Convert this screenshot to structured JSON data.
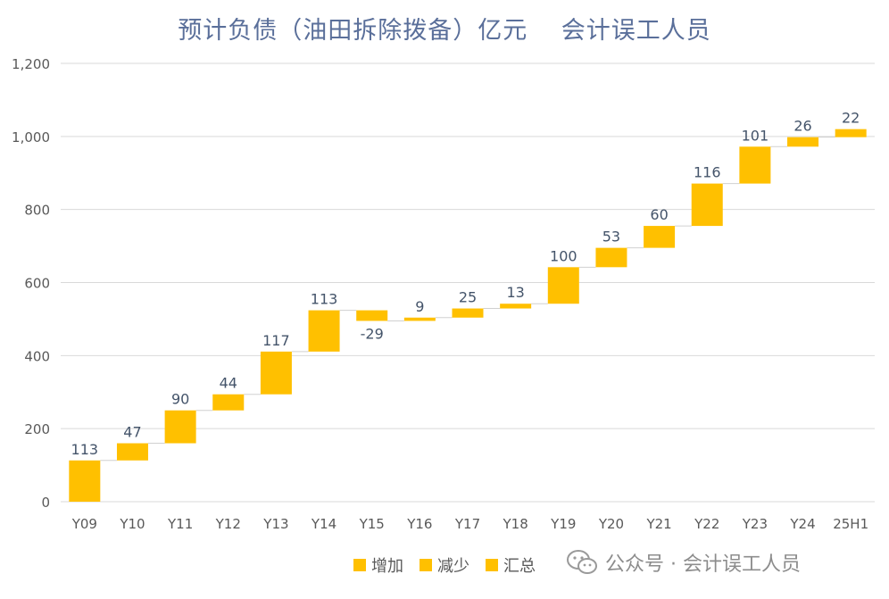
{
  "title": "预计负债（油田拆除拨备）亿元　 会计误工人员",
  "colors": {
    "bar": "#ffc000",
    "grid": "#d9d9d9",
    "axis_text": "#595959",
    "label_text": "#44546a"
  },
  "legend": [
    {
      "label": "增加",
      "color": "#ffc000"
    },
    {
      "label": "减少",
      "color": "#ffc000"
    },
    {
      "label": "汇总",
      "color": "#ffc000"
    }
  ],
  "watermark": {
    "text": "公众号 · 会计误工人员",
    "icon": "wechat-icon"
  },
  "chart_data": {
    "type": "waterfall",
    "categories": [
      "Y09",
      "Y10",
      "Y11",
      "Y12",
      "Y13",
      "Y14",
      "Y15",
      "Y16",
      "Y17",
      "Y18",
      "Y19",
      "Y20",
      "Y21",
      "Y22",
      "Y23",
      "Y24",
      "25H1"
    ],
    "values": [
      113,
      47,
      90,
      44,
      117,
      113,
      -29,
      9,
      25,
      13,
      100,
      53,
      60,
      116,
      101,
      26,
      22
    ],
    "value_labels": [
      "113",
      "47",
      "90",
      "44",
      "117",
      "113",
      "-29",
      "9",
      "25",
      "13",
      "100",
      "53",
      "60",
      "116",
      "101",
      "26",
      "22"
    ],
    "ylim": [
      0,
      1200
    ],
    "yticks": [
      0,
      200,
      400,
      600,
      800,
      1000,
      1200
    ],
    "ytick_labels": [
      "0",
      "200",
      "400",
      "600",
      "800",
      "1,000",
      "1,200"
    ],
    "grid": true,
    "legend_position": "bottom"
  }
}
